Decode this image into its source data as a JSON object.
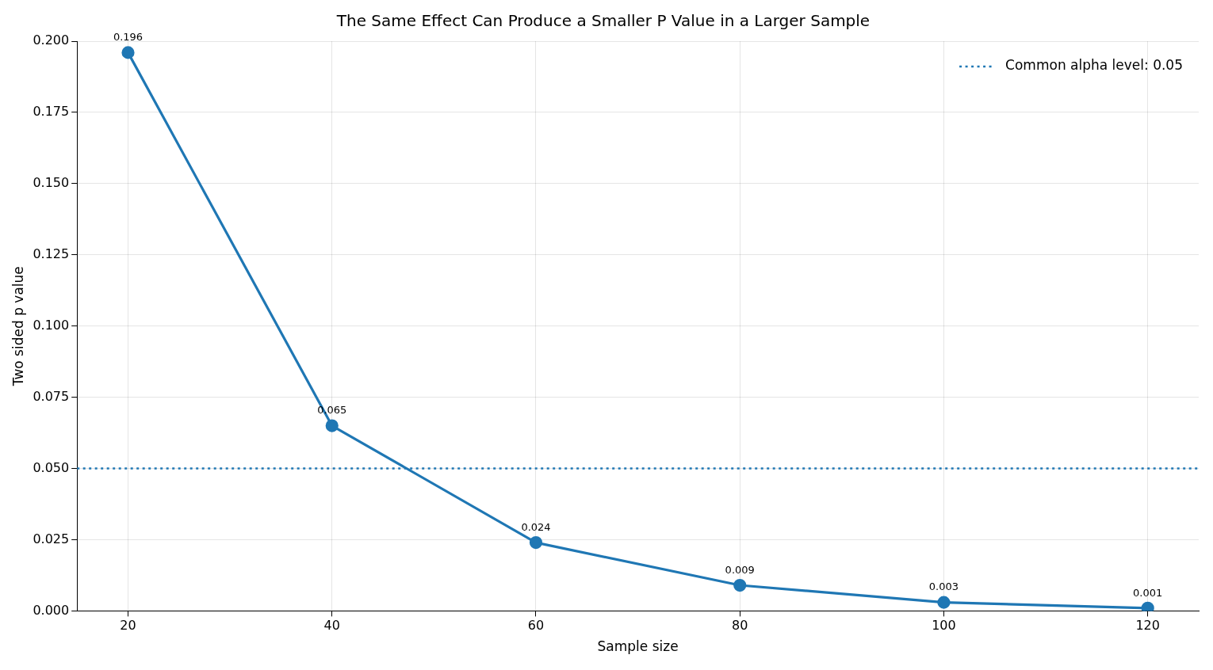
{
  "chart_data": {
    "type": "line",
    "title": "The Same Effect Can Produce a Smaller P Value in a Larger Sample",
    "xlabel": "Sample size",
    "ylabel": "Two sided p value",
    "x": [
      20,
      40,
      60,
      80,
      100,
      120
    ],
    "series": [
      {
        "color": "#1f77b4",
        "values": [
          0.196,
          0.065,
          0.024,
          0.009,
          0.003,
          0.001
        ]
      }
    ],
    "xlim": [
      15,
      125
    ],
    "xticks": [
      20,
      40,
      60,
      80,
      100,
      120
    ],
    "ylim": [
      0,
      0.2
    ],
    "yticks": [
      {
        "value": 0,
        "label": "0.000"
      },
      {
        "value": 0.025,
        "label": "0.025"
      },
      {
        "value": 0.05,
        "label": "0.050"
      },
      {
        "value": 0.075,
        "label": "0.075"
      },
      {
        "value": 0.1,
        "label": "0.100"
      },
      {
        "value": 0.125,
        "label": "0.125"
      },
      {
        "value": 0.15,
        "label": "0.150"
      },
      {
        "value": 0.175,
        "label": "0.175"
      },
      {
        "value": 0.2,
        "label": "0.200"
      }
    ],
    "ref_lines": [
      {
        "axis": "y",
        "value": 0.05,
        "label": "Common alpha level: 0.05",
        "color": "#1f77b4",
        "line_style": "dotted"
      }
    ],
    "grid": true,
    "legend": "top right",
    "marker": "circle",
    "line_style": "solid",
    "data_labels": true
  }
}
